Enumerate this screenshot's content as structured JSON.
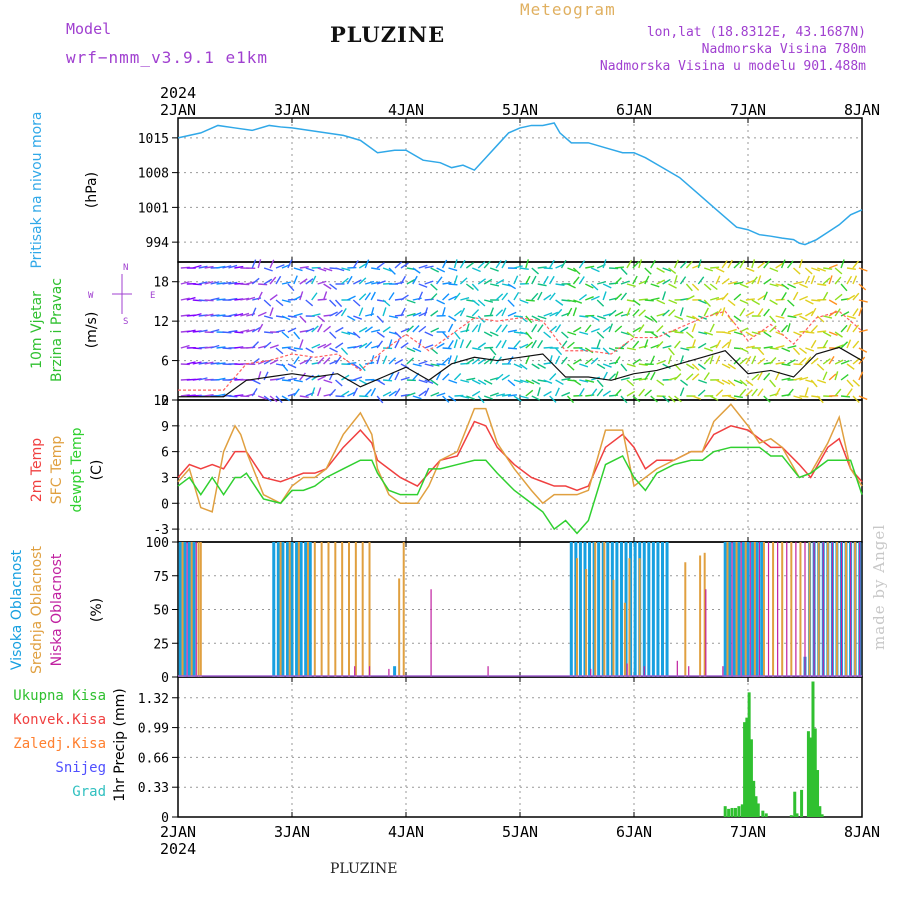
{
  "header": {
    "model_label": "Model",
    "model_name": "wrf−nmm_v3.9.1  e1km",
    "station": "PLUZINE",
    "meteogram_label": "Meteogram",
    "lonlat": "lon,lat (18.8312E, 43.1687N)",
    "altitude": "Nadmorska Visina 780m",
    "model_altitude": "Nadmorska Visina u modelu 901.488m",
    "signature": "made by Angel",
    "bottom_title": "PLUZINE"
  },
  "colors": {
    "pressure": "#30a8e8",
    "temp2m": "#f04040",
    "sfc": "#e0a040",
    "dewpt": "#30d030",
    "high_cloud": "#18a0e0",
    "mid_cloud": "#e0a040",
    "low_cloud": "#c020a0",
    "total_precip": "#30c030",
    "wind_speed": "#101010",
    "gust": "#ff6060",
    "title_purple": "#a040d0"
  },
  "chart_data": [
    {
      "type": "line",
      "panel": "pressure",
      "top_year": "2024",
      "bottom_year": "2024",
      "x_labels": [
        "2JAN",
        "3JAN",
        "4JAN",
        "5JAN",
        "6JAN",
        "7JAN",
        "8JAN"
      ],
      "xlim": [
        0,
        6
      ],
      "ylabel_left": "Pritisak na nivou mora",
      "ylabel_unit": "(hPa)",
      "yticks": [
        994,
        1001,
        1008,
        1015
      ],
      "ylim": [
        990,
        1019
      ],
      "series": [
        {
          "x": [
            0,
            0.1,
            0.2,
            0.35,
            0.5,
            0.65,
            0.8,
            0.9,
            1.0,
            1.15,
            1.3,
            1.45,
            1.6,
            1.75,
            1.9,
            2.0,
            2.15,
            2.3,
            2.4,
            2.5,
            2.6,
            2.7,
            2.8,
            2.9,
            3.0,
            3.1,
            3.2,
            3.3,
            3.35,
            3.45,
            3.6,
            3.75,
            3.9,
            4.0,
            4.1,
            4.25,
            4.4,
            4.55,
            4.7,
            4.8,
            4.9,
            5.0,
            5.1,
            5.2,
            5.3,
            5.4,
            5.45,
            5.5,
            5.6,
            5.7,
            5.8,
            5.9,
            6.0
          ],
          "y": [
            1015,
            1015.5,
            1016,
            1017.5,
            1017,
            1016.5,
            1017.5,
            1017.2,
            1017,
            1016.5,
            1016,
            1015.5,
            1014.5,
            1012,
            1012.5,
            1012.5,
            1010.5,
            1010,
            1009,
            1009.5,
            1008.5,
            1011,
            1013.5,
            1016,
            1017,
            1017.5,
            1017.5,
            1018,
            1016,
            1014,
            1014,
            1013,
            1012,
            1012,
            1011,
            1009,
            1007,
            1004,
            1001,
            999,
            997,
            996.5,
            995.5,
            995.2,
            994.8,
            994.5,
            993.8,
            993.5,
            994.5,
            996,
            997.5,
            999.5,
            1000.5
          ]
        }
      ]
    },
    {
      "type": "line",
      "panel": "wind",
      "ylabel_left": "10m Vjetar",
      "ylabel_left2": "Brzina i Pravac",
      "ylabel_unit": "(m/s)",
      "compass": {
        "n": "N",
        "s": "S",
        "e": "E",
        "w": "W"
      },
      "yticks": [
        0,
        6,
        12,
        18
      ],
      "ylim": [
        0,
        21
      ],
      "series": [
        {
          "name": "10m wind speed",
          "x": [
            0,
            0.2,
            0.4,
            0.6,
            0.8,
            1.0,
            1.2,
            1.4,
            1.6,
            1.8,
            2.0,
            2.2,
            2.4,
            2.6,
            2.8,
            3.0,
            3.2,
            3.4,
            3.6,
            3.8,
            4.0,
            4.2,
            4.4,
            4.6,
            4.8,
            5.0,
            5.2,
            5.4,
            5.6,
            5.8,
            6.0
          ],
          "y": [
            0.5,
            0.5,
            0.5,
            3.0,
            3.5,
            4.0,
            3.5,
            4.0,
            2.0,
            3.5,
            5.0,
            3.0,
            5.5,
            6.5,
            6.0,
            6.5,
            7.0,
            3.5,
            3.5,
            3.0,
            4.0,
            4.5,
            5.5,
            6.5,
            7.5,
            4.0,
            4.5,
            3.5,
            7.0,
            8.0,
            6.0
          ]
        },
        {
          "name": "gust",
          "x": [
            0,
            0.2,
            0.4,
            0.6,
            0.8,
            1.0,
            1.2,
            1.4,
            1.6,
            1.8,
            2.0,
            2.2,
            2.4,
            2.6,
            2.8,
            3.0,
            3.2,
            3.4,
            3.6,
            3.8,
            4.0,
            4.2,
            4.4,
            4.6,
            4.8,
            5.0,
            5.2,
            5.4,
            5.6,
            5.8,
            6.0
          ],
          "y": [
            1.5,
            1.5,
            1.5,
            5.5,
            6.0,
            7.0,
            6.5,
            7.0,
            4.5,
            7.5,
            10.0,
            7.5,
            10.0,
            12.5,
            12.0,
            12.5,
            12.0,
            7.5,
            7.5,
            7.0,
            9.5,
            9.5,
            11.0,
            12.5,
            13.5,
            9.0,
            11.5,
            8.5,
            12.5,
            13.5,
            10.5
          ]
        }
      ]
    },
    {
      "type": "line",
      "panel": "temperature",
      "ylabel_left": "2m Temp",
      "ylabel_left2": "SFC Temp",
      "ylabel_left3": "dewpt Temp",
      "ylabel_unit": "(C)",
      "yticks": [
        -3,
        0,
        3,
        6,
        9,
        12
      ],
      "ylim": [
        -4.5,
        12
      ],
      "series": [
        {
          "name": "2m Temp",
          "x": [
            0,
            0.1,
            0.2,
            0.3,
            0.4,
            0.5,
            0.55,
            0.6,
            0.75,
            0.9,
            1.0,
            1.1,
            1.2,
            1.3,
            1.45,
            1.6,
            1.7,
            1.75,
            1.85,
            1.95,
            2.1,
            2.2,
            2.3,
            2.45,
            2.6,
            2.7,
            2.8,
            2.95,
            3.1,
            3.2,
            3.3,
            3.4,
            3.5,
            3.6,
            3.75,
            3.9,
            4.0,
            4.1,
            4.2,
            4.35,
            4.5,
            4.6,
            4.7,
            4.85,
            5.0,
            5.1,
            5.2,
            5.3,
            5.45,
            5.55,
            5.7,
            5.8,
            5.9,
            6.0
          ],
          "y": [
            3,
            4.5,
            4,
            4.5,
            4,
            6,
            6,
            6,
            3,
            2.5,
            3,
            3.5,
            3.5,
            4,
            6.5,
            8.5,
            7,
            5,
            4,
            3,
            2,
            3.5,
            5,
            5.5,
            9.5,
            9,
            6.5,
            4.5,
            3,
            2.5,
            2,
            2,
            1.5,
            2,
            6.5,
            8,
            6.5,
            4,
            5,
            5,
            6,
            6,
            8,
            9,
            8.5,
            7.5,
            6.5,
            6.5,
            4.5,
            3,
            6.5,
            7.5,
            4,
            2.5
          ]
        },
        {
          "name": "SFC Temp",
          "x": [
            0,
            0.1,
            0.2,
            0.3,
            0.4,
            0.5,
            0.55,
            0.6,
            0.75,
            0.9,
            1.0,
            1.1,
            1.2,
            1.3,
            1.45,
            1.6,
            1.7,
            1.75,
            1.85,
            1.95,
            2.1,
            2.2,
            2.3,
            2.45,
            2.6,
            2.7,
            2.8,
            2.95,
            3.1,
            3.2,
            3.3,
            3.4,
            3.5,
            3.6,
            3.75,
            3.9,
            4.0,
            4.1,
            4.2,
            4.35,
            4.5,
            4.6,
            4.7,
            4.85,
            5.0,
            5.1,
            5.2,
            5.3,
            5.45,
            5.55,
            5.7,
            5.8,
            5.9,
            6.0
          ],
          "y": [
            2.5,
            4,
            -0.5,
            -1,
            6,
            9,
            8,
            6,
            1,
            0,
            2,
            3,
            3,
            4,
            8,
            10.5,
            8,
            4,
            1,
            0,
            0,
            2,
            5,
            6,
            11,
            11,
            7,
            4,
            1.5,
            0,
            1,
            1,
            1,
            1.5,
            8.5,
            8.5,
            2,
            3,
            4,
            5,
            6,
            6,
            9.5,
            11.5,
            9,
            7,
            7.5,
            6.5,
            3,
            3.5,
            7,
            10,
            4,
            2
          ]
        },
        {
          "name": "dewpt Temp",
          "x": [
            0,
            0.1,
            0.2,
            0.3,
            0.4,
            0.5,
            0.55,
            0.6,
            0.75,
            0.9,
            1.0,
            1.1,
            1.2,
            1.3,
            1.45,
            1.6,
            1.7,
            1.75,
            1.85,
            1.95,
            2.1,
            2.2,
            2.3,
            2.45,
            2.6,
            2.7,
            2.8,
            2.95,
            3.1,
            3.2,
            3.3,
            3.4,
            3.5,
            3.6,
            3.75,
            3.9,
            4.0,
            4.1,
            4.2,
            4.35,
            4.5,
            4.6,
            4.7,
            4.85,
            5.0,
            5.1,
            5.2,
            5.3,
            5.45,
            5.55,
            5.7,
            5.8,
            5.9,
            6.0
          ],
          "y": [
            2,
            3,
            1,
            3,
            1,
            3,
            3,
            3.5,
            0.5,
            0,
            1.5,
            1.5,
            2,
            3,
            4,
            5,
            5,
            3.5,
            1.5,
            1,
            1,
            4,
            4,
            4.5,
            5,
            5,
            3.5,
            1.5,
            0,
            -1,
            -3,
            -2,
            -3.5,
            -2,
            4.5,
            5.5,
            3,
            1.5,
            3.5,
            4.5,
            5,
            5,
            6,
            6.5,
            6.5,
            6.5,
            5.5,
            5.5,
            3,
            3.5,
            5,
            5,
            5,
            1
          ]
        }
      ]
    },
    {
      "type": "bar",
      "panel": "clouds",
      "ylabel_left": "Visoka Oblacnost",
      "ylabel_left2": "Srednja Oblacnost",
      "ylabel_left3": "Niska Oblacnost",
      "ylabel_unit": "(%)",
      "yticks": [
        0,
        25,
        50,
        75,
        100
      ],
      "ylim": [
        0,
        100
      ],
      "series": [
        {
          "name": "Visoka Oblacnost",
          "x": [
            0.02,
            0.06,
            0.1,
            0.14,
            0.84,
            0.88,
            0.92,
            0.96,
            1.0,
            1.04,
            1.08,
            1.12,
            1.16,
            1.9,
            3.45,
            3.49,
            3.53,
            3.57,
            3.61,
            3.65,
            3.69,
            3.73,
            3.77,
            3.81,
            3.85,
            3.89,
            3.93,
            3.97,
            4.01,
            4.05,
            4.09,
            4.13,
            4.17,
            4.21,
            4.25,
            4.29,
            4.8,
            4.84,
            4.88,
            4.92,
            4.96,
            5.0,
            5.04,
            5.08,
            5.12,
            5.5,
            5.54,
            5.58,
            5.62,
            5.66,
            5.7,
            5.74,
            5.78,
            5.82,
            5.86,
            5.9,
            5.94,
            5.98
          ],
          "y": [
            100,
            100,
            100,
            100,
            100,
            100,
            100,
            100,
            100,
            100,
            100,
            100,
            100,
            8,
            100,
            100,
            100,
            100,
            100,
            100,
            100,
            100,
            100,
            100,
            100,
            100,
            100,
            100,
            100,
            100,
            100,
            100,
            100,
            100,
            100,
            100,
            100,
            100,
            100,
            100,
            100,
            100,
            100,
            100,
            100,
            15,
            100,
            100,
            100,
            100,
            100,
            100,
            100,
            100,
            100,
            100,
            100,
            100
          ]
        },
        {
          "name": "Srednja Oblacnost",
          "x": [
            0.04,
            0.12,
            0.18,
            0.2,
            0.9,
            0.98,
            1.06,
            1.14,
            1.2,
            1.26,
            1.32,
            1.38,
            1.44,
            1.5,
            1.56,
            1.62,
            1.68,
            1.94,
            1.98,
            3.5,
            3.58,
            3.66,
            3.74,
            3.82,
            3.92,
            3.96,
            4.05,
            4.45,
            4.58,
            4.62,
            4.82,
            4.9,
            4.98,
            5.06,
            5.14,
            5.22,
            5.3,
            5.38,
            5.46,
            5.54,
            5.62,
            5.7,
            5.78,
            5.86,
            5.94
          ],
          "y": [
            100,
            100,
            100,
            100,
            100,
            100,
            100,
            100,
            100,
            100,
            100,
            100,
            100,
            100,
            100,
            100,
            100,
            73,
            100,
            88,
            80,
            100,
            100,
            72,
            55,
            88,
            88,
            85,
            90,
            92,
            100,
            100,
            100,
            100,
            100,
            100,
            100,
            100,
            100,
            100,
            100,
            100,
            100,
            100,
            100
          ]
        },
        {
          "name": "Niska Oblacnost",
          "x": [
            0.08,
            0.16,
            1.55,
            1.68,
            1.85,
            2.22,
            2.72,
            3.62,
            3.94,
            4.09,
            4.38,
            4.48,
            4.63,
            4.78,
            4.86,
            4.94,
            5.02,
            5.1,
            5.18,
            5.26,
            5.34,
            5.42,
            5.5,
            5.58,
            5.66,
            5.74,
            5.82,
            5.9,
            5.98
          ],
          "y": [
            100,
            100,
            8,
            8,
            6,
            65,
            8,
            6,
            10,
            8,
            12,
            8,
            65,
            8,
            100,
            100,
            100,
            100,
            100,
            100,
            100,
            100,
            100,
            100,
            100,
            100,
            100,
            100,
            100
          ]
        }
      ]
    },
    {
      "type": "bar",
      "panel": "precip",
      "legend": [
        "Ukupna Kisa",
        "Konvek.Kisa",
        "Zaledj.Kisa",
        "Snijeg",
        "Grad"
      ],
      "ylabel_left": "1hr Precip (mm)",
      "yticks": [
        0,
        0.33,
        0.66,
        0.99,
        1.32
      ],
      "ylim": [
        0,
        1.55
      ],
      "series": [
        {
          "name": "Ukupna Kisa",
          "x": [
            4.8,
            4.83,
            4.86,
            4.89,
            4.92,
            4.95,
            4.97,
            4.99,
            5.01,
            5.03,
            5.05,
            5.07,
            5.09,
            5.13,
            5.16,
            5.38,
            5.41,
            5.43,
            5.47,
            5.53,
            5.55,
            5.57,
            5.59,
            5.61,
            5.63,
            5.65
          ],
          "y": [
            0.12,
            0.09,
            0.1,
            0.1,
            0.12,
            0.14,
            1.05,
            1.1,
            1.38,
            0.86,
            0.4,
            0.23,
            0.15,
            0.07,
            0.04,
            0.02,
            0.28,
            0.04,
            0.3,
            0.95,
            0.88,
            1.5,
            0.98,
            0.52,
            0.12,
            0.03
          ]
        }
      ]
    }
  ]
}
